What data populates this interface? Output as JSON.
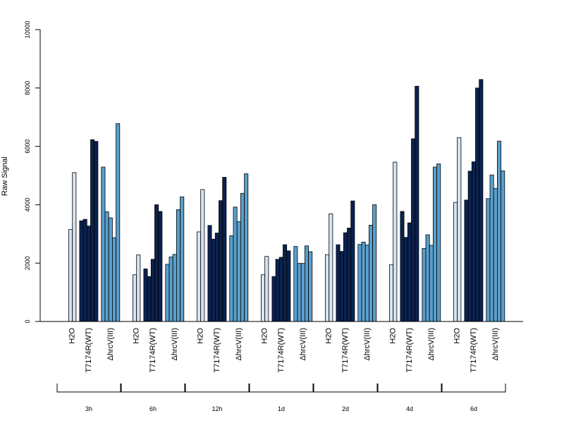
{
  "chart_data": {
    "type": "bar",
    "ylabel": "Raw Signal",
    "ylim": [
      0,
      10000
    ],
    "yticks": [
      0,
      2000,
      4000,
      6000,
      8000,
      10000
    ],
    "grid": false,
    "legend": "none",
    "condition_labels": [
      "H2O",
      "T7174R(WT)",
      "ΔhrcV(III)"
    ],
    "condition_colors": [
      "#d6e4f3",
      "#0b2250",
      "#5b9fcd"
    ],
    "timepoints": [
      {
        "label": "3h",
        "groups": [
          [
            3150,
            5100
          ],
          [
            3450,
            3500,
            3270,
            6230,
            6170
          ],
          [
            5290,
            3760,
            3550,
            2870,
            6780
          ]
        ]
      },
      {
        "label": "6h",
        "groups": [
          [
            1600,
            2280
          ],
          [
            1800,
            1540,
            2130,
            4000,
            3770
          ],
          [
            1960,
            2210,
            2300,
            3830,
            4270
          ]
        ]
      },
      {
        "label": "12h",
        "groups": [
          [
            3070,
            4520
          ],
          [
            3290,
            2820,
            3030,
            4140,
            4940
          ],
          [
            2940,
            3920,
            3420,
            4390,
            5060
          ]
        ]
      },
      {
        "label": "1d",
        "groups": [
          [
            1600,
            2230
          ],
          [
            1540,
            2130,
            2200,
            2630,
            2420
          ],
          [
            2570,
            1990,
            1990,
            2590,
            2390
          ]
        ]
      },
      {
        "label": "2d",
        "groups": [
          [
            2290,
            3690
          ],
          [
            2630,
            2400,
            3040,
            3200,
            4130
          ],
          [
            2640,
            2720,
            2620,
            3300,
            4000
          ]
        ]
      },
      {
        "label": "4d",
        "groups": [
          [
            1940,
            5460
          ],
          [
            3770,
            2880,
            3380,
            6260,
            8060
          ],
          [
            2500,
            2970,
            2610,
            5290,
            5400
          ]
        ]
      },
      {
        "label": "6d",
        "groups": [
          [
            4080,
            6300
          ],
          [
            4160,
            5150,
            5470,
            8000,
            8290
          ],
          [
            4210,
            5020,
            4560,
            6180,
            5160
          ]
        ]
      }
    ]
  }
}
